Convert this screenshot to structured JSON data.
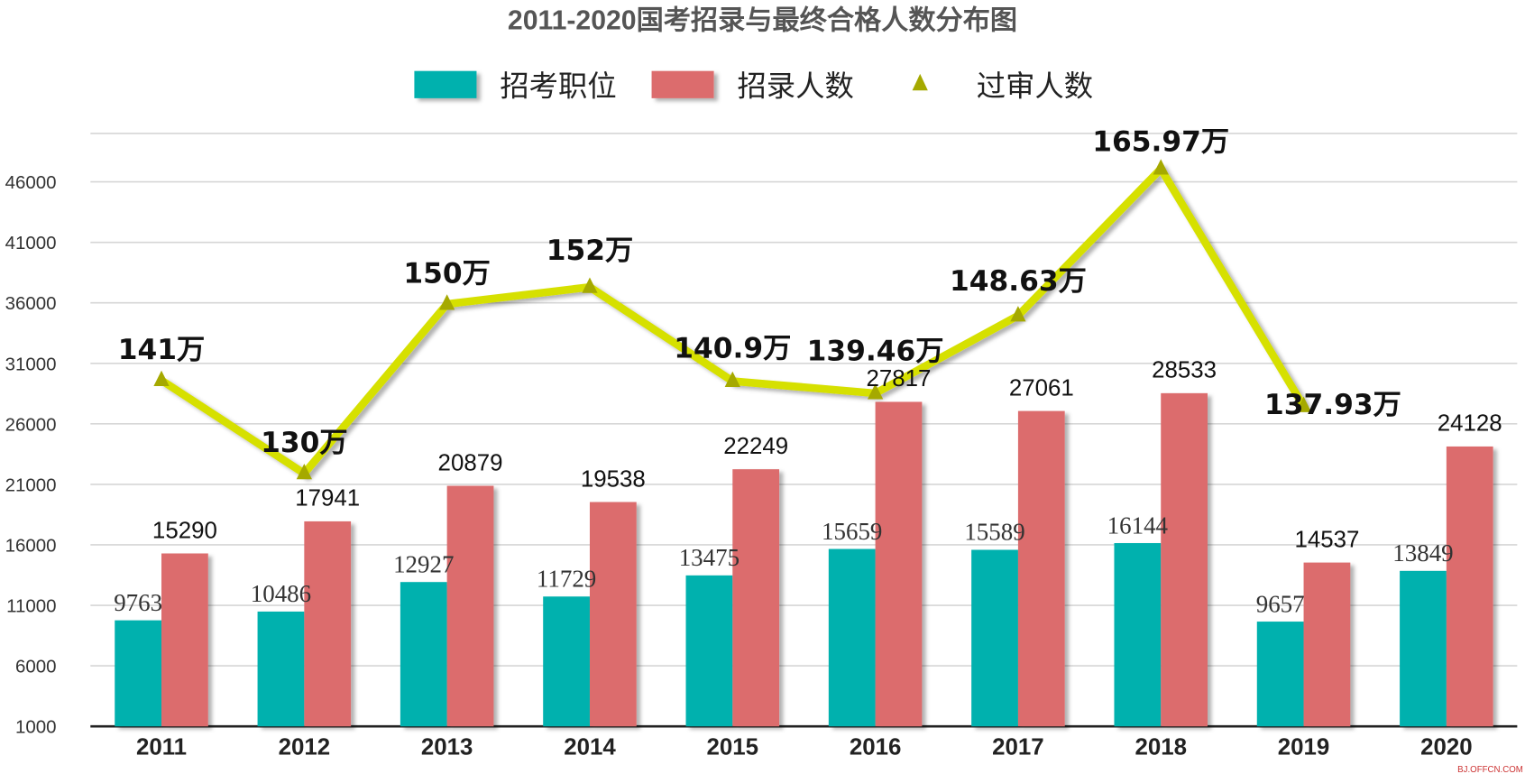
{
  "chart_data": {
    "type": "bar",
    "title": "2011-2020国考招录与最终合格人数分布图",
    "categories": [
      "2011",
      "2012",
      "2013",
      "2014",
      "2015",
      "2016",
      "2017",
      "2018",
      "2019",
      "2020"
    ],
    "ylim": [
      1000,
      50000
    ],
    "yticks": [
      "1000",
      "6000",
      "11000",
      "16000",
      "21000",
      "26000",
      "31000",
      "36000",
      "41000",
      "46000"
    ],
    "grid": true,
    "legend_position": "top",
    "series": [
      {
        "name": "招考职位",
        "type": "bar",
        "color": "#00b1ae",
        "values": [
          9763,
          10486,
          12927,
          11729,
          13475,
          15659,
          15589,
          16144,
          9657,
          13849
        ],
        "labels": [
          "9763",
          "10486",
          "12927",
          "11729",
          "13475",
          "15659",
          "15589",
          "16144",
          "9657",
          "13849"
        ]
      },
      {
        "name": "招录人数",
        "type": "bar",
        "color": "#dc6c6d",
        "values": [
          15290,
          17941,
          20879,
          19538,
          22249,
          27817,
          27061,
          28533,
          14537,
          24128
        ],
        "labels": [
          "15290",
          "17941",
          "20879",
          "19538",
          "22249",
          "27817",
          "27061",
          "28533",
          "14537",
          "24128"
        ]
      },
      {
        "name": "过审人数",
        "type": "line",
        "color": "#d6e000",
        "unit": "万",
        "values": [
          141,
          130,
          150,
          152,
          140.9,
          139.46,
          148.63,
          165.97,
          137.93,
          null
        ],
        "labels": [
          "141万",
          "130万",
          "150万",
          "152万",
          "140.9万",
          "139.46万",
          "148.63万",
          "165.97万",
          "137.93万",
          ""
        ]
      }
    ]
  },
  "watermark": "BJ.OFFCN.COM"
}
